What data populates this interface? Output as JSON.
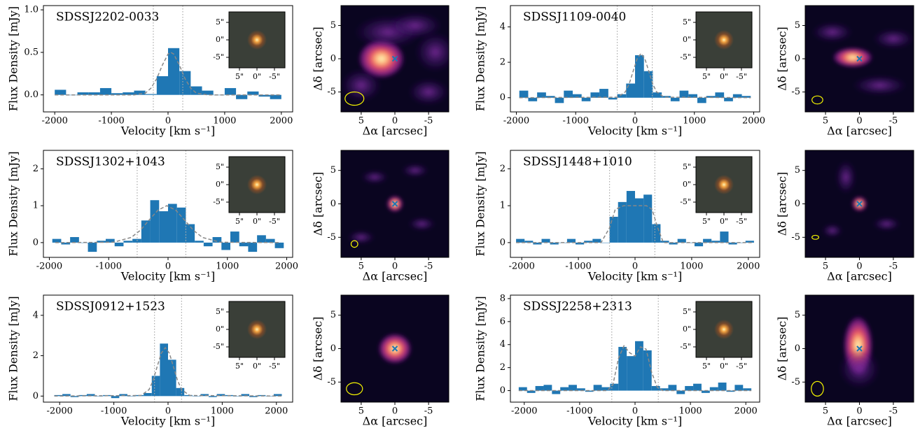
{
  "chart_data": [
    {
      "type": "histogram",
      "title": "SDSSJ2202-0033",
      "x_label": "Velocity [km s⁻¹]",
      "y_label": "Flux Density [mJy]",
      "color": "#1f77b4",
      "bins": [
        -2000,
        -1800,
        -1600,
        -1400,
        -1200,
        -1000,
        -800,
        -600,
        -400,
        -200,
        0,
        200,
        400,
        600,
        800,
        1000,
        1200,
        1400,
        1600,
        1800,
        2000
      ],
      "values": [
        0.06,
        0.0,
        0.03,
        0.03,
        0.08,
        0.02,
        0.03,
        0.05,
        0.01,
        0.22,
        0.55,
        0.28,
        0.1,
        0.05,
        0.0,
        0.08,
        -0.05,
        0.04,
        -0.02,
        -0.05
      ],
      "fit": {
        "x": [
          -2000,
          -600,
          -400,
          -300,
          -200,
          -100,
          0,
          50,
          100,
          200,
          300,
          400,
          500,
          700,
          2000
        ],
        "values": [
          0,
          0,
          0.02,
          0.08,
          0.19,
          0.35,
          0.48,
          0.5,
          0.48,
          0.35,
          0.19,
          0.08,
          0.02,
          0,
          0
        ]
      },
      "reference_lines": [
        -260,
        260
      ],
      "xlim": [
        -2200,
        2200
      ],
      "ylim": [
        -0.2,
        1.05
      ],
      "xticks": [
        -2000,
        -1000,
        0,
        1000,
        2000
      ],
      "yticks": [
        {
          "value": 0,
          "label": "0.0"
        },
        {
          "value": 0.5,
          "label": "0.5"
        },
        {
          "value": 1,
          "label": "1.0"
        }
      ],
      "inset": {
        "xlim": [
          8,
          -8
        ],
        "ylim": [
          -8,
          8
        ],
        "xticks": [
          {
            "value": 5,
            "label": "5\""
          },
          {
            "value": 0,
            "label": "0\""
          },
          {
            "value": -5,
            "label": "-5\""
          }
        ],
        "yticks": [
          {
            "value": 5,
            "label": "5\""
          },
          {
            "value": 0,
            "label": "0\""
          },
          {
            "value": -5,
            "label": "-5\""
          }
        ]
      }
    },
    {
      "type": "image",
      "x_label": "Δα [arcsec]",
      "y_label": "Δδ [arcsec]",
      "xlim": [
        8,
        -8
      ],
      "ylim": [
        -8,
        8
      ],
      "xticks": [
        5,
        0,
        -5
      ],
      "yticks": [
        -5,
        0,
        5
      ]
    },
    {
      "type": "histogram",
      "title": "SDSSJ1109-0040",
      "x_label": "Velocity [km s⁻¹]",
      "y_label": "Flux Density [mJy]",
      "color": "#1f77b4",
      "bins": [
        -1950,
        -1800,
        -1650,
        -1500,
        -1350,
        -1200,
        -1050,
        -900,
        -750,
        -600,
        -450,
        -300,
        -150,
        0,
        150,
        300,
        450,
        600,
        750,
        900,
        1050,
        1200,
        1350,
        1500,
        1650,
        1800,
        1950
      ],
      "values": [
        0.4,
        -0.2,
        0.3,
        0.1,
        -0.3,
        0.4,
        0.2,
        -0.2,
        0.3,
        0.5,
        -0.1,
        0.2,
        0.8,
        2.4,
        1.5,
        0.3,
        0.1,
        -0.2,
        0.4,
        0.2,
        -0.3,
        0.1,
        0.3,
        -0.2,
        0.2,
        0.1
      ],
      "fit": {
        "x": [
          -1950,
          -290,
          -160,
          -95,
          -30,
          35,
          100,
          165,
          230,
          295,
          360,
          490,
          1950
        ],
        "values": [
          0,
          0.03,
          0.34,
          0.81,
          1.52,
          2.2,
          2.5,
          2.2,
          1.52,
          0.81,
          0.34,
          0.03,
          0
        ]
      },
      "reference_lines": [
        -300,
        290
      ],
      "xlim": [
        -2100,
        2100
      ],
      "ylim": [
        -0.8,
        5.2
      ],
      "xticks": [
        -2000,
        -1000,
        0,
        1000,
        2000
      ],
      "yticks": [
        0,
        2,
        4
      ],
      "inset": {
        "xlim": [
          8,
          -8
        ],
        "ylim": [
          -8,
          8
        ],
        "xticks": [
          {
            "value": 5,
            "label": "5\""
          },
          {
            "value": 0,
            "label": "0\""
          },
          {
            "value": -5,
            "label": "-5\""
          }
        ],
        "yticks": [
          {
            "value": 5,
            "label": "5\""
          },
          {
            "value": 0,
            "label": "0\""
          },
          {
            "value": -5,
            "label": "-5\""
          }
        ]
      }
    },
    {
      "type": "image",
      "x_label": "Δα [arcsec]",
      "y_label": "Δδ [arcsec]",
      "xlim": [
        8,
        -8
      ],
      "ylim": [
        -8,
        8
      ],
      "xticks": [
        5,
        0,
        -5
      ],
      "yticks": [
        -5,
        0,
        5
      ]
    },
    {
      "type": "histogram",
      "title": "SDSSJ1302+1043",
      "x_label": "Velocity [km s⁻¹]",
      "y_label": "Flux Density [mJy]",
      "color": "#1f77b4",
      "bins": [
        -1950,
        -1800,
        -1650,
        -1500,
        -1350,
        -1200,
        -1050,
        -900,
        -750,
        -600,
        -450,
        -300,
        -150,
        0,
        150,
        300,
        450,
        600,
        750,
        900,
        1050,
        1200,
        1350,
        1500,
        1650,
        1800,
        1950
      ],
      "values": [
        0.1,
        -0.05,
        0.15,
        0.0,
        -0.25,
        0.05,
        0.1,
        -0.1,
        0.05,
        0.1,
        0.6,
        1.15,
        0.85,
        1.05,
        0.95,
        0.5,
        0.05,
        -0.1,
        0.15,
        -0.2,
        0.3,
        -0.1,
        -0.25,
        0.2,
        0.1,
        -0.15
      ],
      "fit": {
        "x": [
          -1900,
          -920,
          -620,
          -470,
          -320,
          -170,
          -20,
          130,
          280,
          430,
          580,
          880,
          1900
        ],
        "values": [
          0,
          0.01,
          0.14,
          0.33,
          0.61,
          0.88,
          1,
          0.88,
          0.61,
          0.33,
          0.14,
          0.01,
          0
        ]
      },
      "reference_lines": [
        -520,
        300
      ],
      "xlim": [
        -2100,
        2100
      ],
      "ylim": [
        -0.4,
        2.5
      ],
      "xticks": [
        -2000,
        -1000,
        0,
        1000,
        2000
      ],
      "yticks": [
        0,
        1,
        2
      ],
      "inset": {
        "xlim": [
          8,
          -8
        ],
        "ylim": [
          -8,
          8
        ],
        "xticks": [
          {
            "value": 5,
            "label": "5\""
          },
          {
            "value": 0,
            "label": "0\""
          },
          {
            "value": -5,
            "label": "-5\""
          }
        ],
        "yticks": [
          {
            "value": 5,
            "label": "5\""
          },
          {
            "value": 0,
            "label": "0\""
          },
          {
            "value": -5,
            "label": "-5\""
          }
        ]
      }
    },
    {
      "type": "image",
      "x_label": "Δα [arcsec]",
      "y_label": "Δδ [arcsec]",
      "xlim": [
        8,
        -8
      ],
      "ylim": [
        -8,
        8
      ],
      "xticks": [
        5,
        0,
        -5
      ],
      "yticks": [
        -5,
        0,
        5
      ]
    },
    {
      "type": "histogram",
      "title": "SDSSJ1448+1010",
      "x_label": "Velocity [km s⁻¹]",
      "y_label": "Flux Density [mJy]",
      "color": "#1f77b4",
      "bins": [
        -2100,
        -1950,
        -1800,
        -1650,
        -1500,
        -1350,
        -1200,
        -1050,
        -900,
        -750,
        -600,
        -450,
        -300,
        -150,
        0,
        150,
        300,
        450,
        600,
        750,
        900,
        1050,
        1200,
        1350,
        1500,
        1650,
        1800,
        1950,
        2100
      ],
      "values": [
        0.1,
        0.05,
        -0.05,
        0.1,
        -0.05,
        0.0,
        0.1,
        -0.05,
        0.05,
        0.1,
        0.0,
        0.7,
        1.1,
        1.4,
        1.2,
        1.3,
        0.5,
        0.05,
        -0.05,
        0.1,
        0.0,
        -0.1,
        0.1,
        0.05,
        0.3,
        -0.05,
        0.0,
        0.05
      ],
      "fit": {
        "x": [
          -2100,
          -600,
          -450,
          -350,
          -200,
          0,
          200,
          300,
          400,
          500,
          2100
        ],
        "values": [
          0,
          0,
          0.4,
          0.9,
          1.0,
          1.0,
          1.0,
          0.9,
          0.4,
          0,
          0
        ]
      },
      "reference_lines": [
        -450,
        350
      ],
      "xlim": [
        -2200,
        2200
      ],
      "ylim": [
        -0.4,
        2.5
      ],
      "xticks": [
        -2000,
        -1000,
        0,
        1000,
        2000
      ],
      "yticks": [
        0,
        1,
        2
      ],
      "inset": {
        "xlim": [
          8,
          -8
        ],
        "ylim": [
          -8,
          8
        ],
        "xticks": [
          {
            "value": 5,
            "label": "5\""
          },
          {
            "value": 0,
            "label": "0\""
          },
          {
            "value": -5,
            "label": "-5\""
          }
        ],
        "yticks": [
          {
            "value": 5,
            "label": "5\""
          },
          {
            "value": 0,
            "label": "0\""
          },
          {
            "value": -5,
            "label": "-5\""
          }
        ]
      }
    },
    {
      "type": "image",
      "x_label": "Δα [arcsec]",
      "y_label": "Δδ [arcsec]",
      "xlim": [
        8,
        -8
      ],
      "ylim": [
        -8,
        8
      ],
      "xticks": [
        5,
        0,
        -5
      ],
      "yticks": [
        -5,
        0,
        5
      ]
    },
    {
      "type": "histogram",
      "title": "SDSSJ0912+1523",
      "x_label": "Velocity [km s⁻¹]",
      "y_label": "Flux Density [mJy]",
      "color": "#1f77b4",
      "bins": [
        -2100,
        -1950,
        -1800,
        -1650,
        -1500,
        -1350,
        -1200,
        -1050,
        -900,
        -750,
        -600,
        -450,
        -300,
        -150,
        0,
        150,
        300,
        450,
        600,
        750,
        900,
        1050,
        1200,
        1350,
        1500,
        1650,
        1800,
        1950,
        2100
      ],
      "values": [
        0.05,
        0.1,
        -0.05,
        0.05,
        0.1,
        0.0,
        0.05,
        -0.1,
        0.1,
        0.0,
        0.05,
        0.15,
        1.0,
        2.6,
        1.8,
        0.4,
        0.05,
        0.0,
        0.1,
        -0.05,
        0.1,
        0.05,
        0.0,
        0.1,
        -0.05,
        0.05,
        0.0,
        0.1
      ],
      "fit": {
        "x": [
          -2100,
          -500,
          -350,
          -275,
          -200,
          -125,
          -50,
          25,
          100,
          175,
          250,
          400,
          2100
        ],
        "values": [
          0,
          0.03,
          0.32,
          0.78,
          1.46,
          2.12,
          2.4,
          2.12,
          1.46,
          0.78,
          0.32,
          0.03,
          0
        ]
      },
      "reference_lines": [
        -250,
        250
      ],
      "xlim": [
        -2300,
        2300
      ],
      "ylim": [
        -0.3,
        5.0
      ],
      "xticks": [
        -2000,
        -1000,
        0,
        1000,
        2000
      ],
      "yticks": [
        0,
        2,
        4
      ],
      "inset": {
        "xlim": [
          8,
          -8
        ],
        "ylim": [
          -8,
          8
        ],
        "xticks": [
          {
            "value": 5,
            "label": "5\""
          },
          {
            "value": 0,
            "label": "0\""
          },
          {
            "value": -5,
            "label": "-5\""
          }
        ],
        "yticks": [
          {
            "value": 5,
            "label": "5\""
          },
          {
            "value": 0,
            "label": "0\""
          },
          {
            "value": -5,
            "label": "-5\""
          }
        ]
      }
    },
    {
      "type": "image",
      "x_label": "Δα [arcsec]",
      "y_label": "Δδ [arcsec]",
      "xlim": [
        8,
        -8
      ],
      "ylim": [
        -8,
        8
      ],
      "xticks": [
        5,
        0,
        -5
      ],
      "yticks": [
        -5,
        0,
        5
      ]
    },
    {
      "type": "histogram",
      "title": "SDSSJ2258+2313",
      "x_label": "Velocity [km s⁻¹]",
      "y_label": "Flux Density [mJy]",
      "color": "#1f77b4",
      "bins": [
        -2100,
        -1950,
        -1800,
        -1650,
        -1500,
        -1350,
        -1200,
        -1050,
        -900,
        -750,
        -600,
        -450,
        -300,
        -150,
        0,
        150,
        300,
        450,
        600,
        750,
        900,
        1050,
        1200,
        1350,
        1500,
        1650,
        1800,
        1950,
        2100
      ],
      "values": [
        0.3,
        -0.2,
        0.4,
        0.5,
        -0.3,
        0.3,
        0.5,
        0.2,
        -0.1,
        0.5,
        0.3,
        0.6,
        3.8,
        3.0,
        4.3,
        3.5,
        0.4,
        0.2,
        0.5,
        -0.3,
        0.4,
        0.6,
        -0.2,
        0.3,
        0.7,
        -0.1,
        0.5,
        0.2
      ],
      "fit": {
        "x": [
          -2100,
          -500,
          -400,
          -300,
          -200,
          -100,
          0,
          100,
          200,
          300,
          400,
          500,
          2100
        ],
        "values": [
          0,
          0,
          0.5,
          2.8,
          3.9,
          3.3,
          3.0,
          3.8,
          3.6,
          1.6,
          0.3,
          0,
          0
        ]
      },
      "reference_lines": [
        -420,
        420
      ],
      "xlim": [
        -2250,
        2250
      ],
      "ylim": [
        -1.0,
        8.3
      ],
      "xticks": [
        -2000,
        -1000,
        0,
        1000,
        2000
      ],
      "yticks": [
        0,
        2,
        4,
        6,
        8
      ],
      "inset": {
        "xlim": [
          8,
          -8
        ],
        "ylim": [
          -8,
          8
        ],
        "xticks": [
          {
            "value": 5,
            "label": "5\""
          },
          {
            "value": 0,
            "label": "0\""
          },
          {
            "value": -5,
            "label": "-5\""
          }
        ],
        "yticks": [
          {
            "value": 5,
            "label": "5\""
          },
          {
            "value": 0,
            "label": "0\""
          },
          {
            "value": -5,
            "label": "-5\""
          }
        ]
      }
    },
    {
      "type": "image",
      "x_label": "Δα [arcsec]",
      "y_label": "Δδ [arcsec]",
      "xlim": [
        8,
        -8
      ],
      "ylim": [
        -8,
        8
      ],
      "xticks": [
        5,
        0,
        -5
      ],
      "yticks": [
        -5,
        0,
        5
      ]
    }
  ]
}
